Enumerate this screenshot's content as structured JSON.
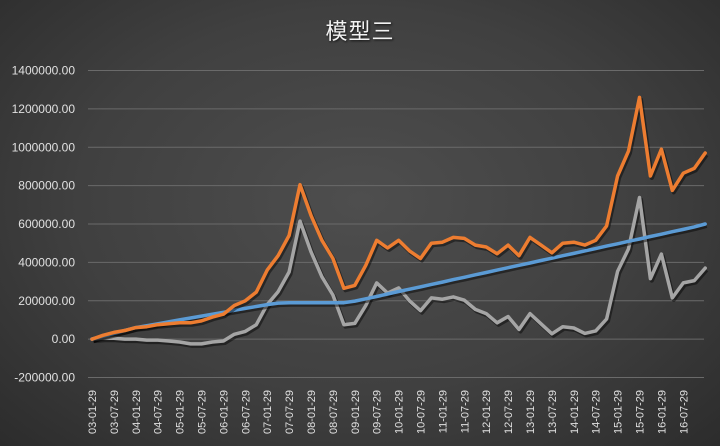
{
  "chart_data": {
    "type": "line",
    "title": "模型三",
    "xlabel": "",
    "ylabel": "",
    "ylim": [
      -200000,
      1400000
    ],
    "grid": true,
    "legend": null,
    "yticks": [
      "1400000.00",
      "1200000.00",
      "1000000.00",
      "800000.00",
      "600000.00",
      "400000.00",
      "200000.00",
      "0.00",
      "-200000.00"
    ],
    "xtick_labels": [
      "03-01-29",
      "03-07-29",
      "04-01-29",
      "04-07-29",
      "05-01-29",
      "05-07-29",
      "06-01-29",
      "06-07-29",
      "07-01-29",
      "07-07-29",
      "08-01-29",
      "08-07-29",
      "09-01-29",
      "09-07-29",
      "10-01-29",
      "10-07-29",
      "11-01-29",
      "11-07-29",
      "12-01-29",
      "12-07-29",
      "13-01-29",
      "13-07-29",
      "14-01-29",
      "14-07-29",
      "15-01-29",
      "15-07-29",
      "16-01-29",
      "16-07-29"
    ],
    "x": [
      "03-01",
      "03-04",
      "03-07",
      "03-10",
      "04-01",
      "04-04",
      "04-07",
      "04-10",
      "05-01",
      "05-04",
      "05-07",
      "05-10",
      "06-01",
      "06-04",
      "06-07",
      "06-10",
      "07-01",
      "07-04",
      "07-07",
      "07-10",
      "08-01",
      "08-04",
      "08-07",
      "08-10",
      "09-01",
      "09-04",
      "09-07",
      "09-10",
      "10-01",
      "10-04",
      "10-07",
      "10-10",
      "11-01",
      "11-04",
      "11-07",
      "11-10",
      "12-01",
      "12-04",
      "12-07",
      "12-10",
      "13-01",
      "13-04",
      "13-07",
      "13-10",
      "14-01",
      "14-04",
      "14-07",
      "14-10",
      "15-01",
      "15-04",
      "15-07",
      "15-10",
      "16-01",
      "16-04",
      "16-07",
      "16-10",
      "17-01"
    ],
    "series": [
      {
        "name": "orange",
        "color": "#ed7d31",
        "values": [
          0,
          20000,
          35000,
          45000,
          60000,
          65000,
          75000,
          80000,
          85000,
          85000,
          95000,
          115000,
          130000,
          175000,
          200000,
          245000,
          360000,
          435000,
          540000,
          805000,
          645000,
          515000,
          420000,
          265000,
          280000,
          385000,
          515000,
          475000,
          515000,
          460000,
          420000,
          500000,
          505000,
          530000,
          525000,
          490000,
          480000,
          445000,
          490000,
          435000,
          530000,
          490000,
          450000,
          500000,
          505000,
          490000,
          515000,
          590000,
          850000,
          980000,
          1260000,
          850000,
          990000,
          775000,
          865000,
          890000,
          970000
        ]
      },
      {
        "name": "blue",
        "color": "#5b9bd5",
        "values": [
          0,
          15000,
          30000,
          45000,
          60000,
          70000,
          80000,
          90000,
          100000,
          110000,
          120000,
          130000,
          140000,
          150000,
          160000,
          170000,
          180000,
          188000,
          190000,
          190000,
          190000,
          190000,
          190000,
          190000,
          198000,
          210000,
          222000,
          235000,
          248000,
          260000,
          272000,
          285000,
          297000,
          310000,
          322000,
          335000,
          347000,
          360000,
          372000,
          385000,
          397000,
          410000,
          422000,
          435000,
          447000,
          460000,
          472000,
          485000,
          497000,
          510000,
          522000,
          535000,
          547000,
          560000,
          572000,
          585000,
          600000
        ]
      },
      {
        "name": "gray",
        "color": "#a5a5a5",
        "values": [
          0,
          5000,
          5000,
          0,
          0,
          -5000,
          -5000,
          -10000,
          -15000,
          -25000,
          -25000,
          -15000,
          -10000,
          25000,
          40000,
          75000,
          180000,
          247000,
          350000,
          615000,
          455000,
          325000,
          230000,
          75000,
          82000,
          175000,
          293000,
          240000,
          267000,
          200000,
          148000,
          215000,
          208000,
          220000,
          203000,
          155000,
          133000,
          85000,
          118000,
          50000,
          133000,
          80000,
          28000,
          65000,
          58000,
          30000,
          43000,
          105000,
          353000,
          470000,
          738000,
          315000,
          443000,
          215000,
          293000,
          305000,
          370000
        ]
      }
    ]
  }
}
